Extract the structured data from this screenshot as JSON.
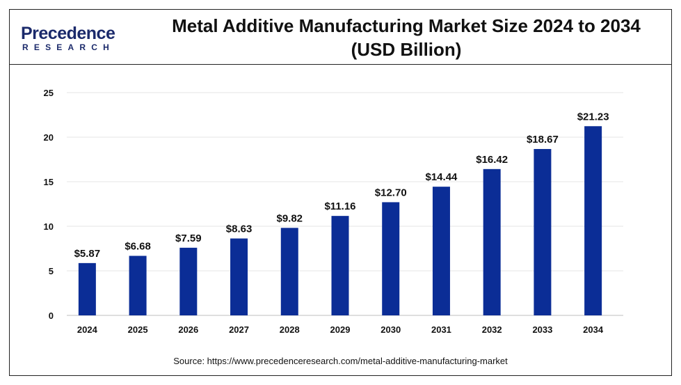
{
  "logo": {
    "main": "Precedence",
    "sub": "RESEARCH",
    "color": "#1b2a6b"
  },
  "title_line1": "Metal Additive Manufacturing Market Size 2024 to 2034",
  "title_line2": "(USD Billion)",
  "source": "Source: https://www.precedenceresearch.com/metal-additive-manufacturing-market",
  "chart_data": {
    "type": "bar",
    "categories": [
      "2024",
      "2025",
      "2026",
      "2027",
      "2028",
      "2029",
      "2030",
      "2031",
      "2032",
      "2033",
      "2034"
    ],
    "values": [
      5.87,
      6.68,
      7.59,
      8.63,
      9.82,
      11.16,
      12.7,
      14.44,
      16.42,
      18.67,
      21.23
    ],
    "data_labels": [
      "$5.87",
      "$6.68",
      "$7.59",
      "$8.63",
      "$9.82",
      "$11.16",
      "$12.70",
      "$14.44",
      "$16.42",
      "$18.67",
      "$21.23"
    ],
    "title": "Metal Additive Manufacturing Market Size 2024 to 2034 (USD Billion)",
    "xlabel": "",
    "ylabel": "",
    "ylim": [
      0,
      25
    ],
    "yticks": [
      0,
      5,
      10,
      15,
      20,
      25
    ],
    "grid": true,
    "legend": "none",
    "bar_color": "#0b2d96",
    "grid_color": "#e4e4e4"
  }
}
